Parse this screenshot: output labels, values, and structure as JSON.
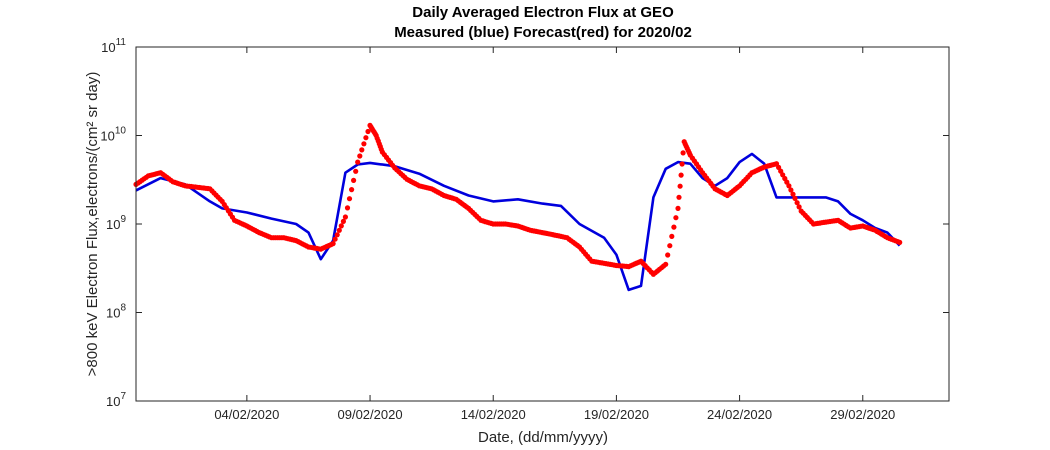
{
  "chart_data": {
    "type": "line",
    "title": "Daily Averaged Electron Flux at GEO",
    "subtitle": "Measured (blue) Forecast(red) for 2020/02",
    "xlabel": "Date, (dd/mm/yyyy)",
    "ylabel": ">800 keV Electron Flux,electrons/(cm² sr day)",
    "yscale": "log",
    "ylim": [
      10000000,
      100000000000
    ],
    "xlim": [
      "2020-01-30T12:00",
      "2020-03-03T12:00"
    ],
    "y_ticks": [
      {
        "value": 10000000,
        "base": "10",
        "exp": "7"
      },
      {
        "value": 100000000,
        "base": "10",
        "exp": "8"
      },
      {
        "value": 1000000000,
        "base": "10",
        "exp": "9"
      },
      {
        "value": 10000000000,
        "base": "10",
        "exp": "10"
      },
      {
        "value": 100000000000,
        "base": "10",
        "exp": "11"
      }
    ],
    "x_ticks": [
      {
        "date": "2020-02-04",
        "label": "04/02/2020"
      },
      {
        "date": "2020-02-09",
        "label": "09/02/2020"
      },
      {
        "date": "2020-02-14",
        "label": "14/02/2020"
      },
      {
        "date": "2020-02-19",
        "label": "19/02/2020"
      },
      {
        "date": "2020-02-24",
        "label": "24/02/2020"
      },
      {
        "date": "2020-02-29",
        "label": "29/02/2020"
      }
    ],
    "grid": false,
    "series": [
      {
        "color": "#0000dd",
        "style": "line",
        "x": [
          "2020-01-30T12:00",
          "2020-01-31T12:00",
          "2020-02-01T12:00",
          "2020-02-02T12:00",
          "2020-02-03T00:00",
          "2020-02-04T00:00",
          "2020-02-05T00:00",
          "2020-02-06T00:00",
          "2020-02-06T12:00",
          "2020-02-07T00:00",
          "2020-02-07T12:00",
          "2020-02-08T00:00",
          "2020-02-08T12:00",
          "2020-02-09T00:00",
          "2020-02-10T00:00",
          "2020-02-11T00:00",
          "2020-02-12T00:00",
          "2020-02-13T00:00",
          "2020-02-14T00:00",
          "2020-02-15T00:00",
          "2020-02-16T00:00",
          "2020-02-16T18:00",
          "2020-02-17T12:00",
          "2020-02-18T12:00",
          "2020-02-19T00:00",
          "2020-02-19T12:00",
          "2020-02-20T00:00",
          "2020-02-20T12:00",
          "2020-02-21T00:00",
          "2020-02-21T12:00",
          "2020-02-22T00:00",
          "2020-02-22T12:00",
          "2020-02-23T00:00",
          "2020-02-23T12:00",
          "2020-02-24T00:00",
          "2020-02-24T12:00",
          "2020-02-25T00:00",
          "2020-02-25T12:00",
          "2020-02-26T12:00",
          "2020-02-27T12:00",
          "2020-02-28T00:00",
          "2020-02-28T12:00",
          "2020-02-29T00:00",
          "2020-02-29T12:00",
          "2020-03-01T00:00",
          "2020-03-01T12:00"
        ],
        "values": [
          2400000000,
          3300000000,
          2800000000,
          1800000000,
          1500000000,
          1350000000,
          1150000000,
          1000000000,
          800000000,
          400000000,
          650000000,
          3800000000,
          4700000000,
          4900000000,
          4500000000,
          3700000000,
          2700000000,
          2100000000,
          1800000000,
          1900000000,
          1700000000,
          1600000000,
          1000000000,
          700000000,
          450000000,
          180000000,
          200000000,
          2000000000,
          4200000000,
          5000000000,
          4800000000,
          3300000000,
          2700000000,
          3300000000,
          5000000000,
          6200000000,
          4800000000,
          2000000000,
          2000000000,
          2000000000,
          1800000000,
          1300000000,
          1100000000,
          900000000,
          800000000,
          570000000
        ]
      },
      {
        "color": "#ff0000",
        "style": "dots",
        "x": [
          "2020-01-30T12:00",
          "2020-01-31T00:00",
          "2020-01-31T12:00",
          "2020-02-01T00:00",
          "2020-02-01T12:00",
          "2020-02-02T00:00",
          "2020-02-02T12:00",
          "2020-02-03T00:00",
          "2020-02-03T12:00",
          "2020-02-04T00:00",
          "2020-02-04T12:00",
          "2020-02-05T00:00",
          "2020-02-05T12:00",
          "2020-02-06T00:00",
          "2020-02-06T12:00",
          "2020-02-07T00:00",
          "2020-02-07T12:00",
          "2020-02-08T00:00",
          "2020-02-08T12:00",
          "2020-02-09T00:00",
          "2020-02-09T06:00",
          "2020-02-09T12:00",
          "2020-02-10T00:00",
          "2020-02-10T12:00",
          "2020-02-11T00:00",
          "2020-02-11T12:00",
          "2020-02-12T00:00",
          "2020-02-12T12:00",
          "2020-02-13T00:00",
          "2020-02-13T12:00",
          "2020-02-14T00:00",
          "2020-02-14T12:00",
          "2020-02-15T00:00",
          "2020-02-15T12:00",
          "2020-02-16T00:00",
          "2020-02-16T12:00",
          "2020-02-17T00:00",
          "2020-02-17T12:00",
          "2020-02-18T00:00",
          "2020-02-18T12:00",
          "2020-02-19T00:00",
          "2020-02-19T12:00",
          "2020-02-20T00:00",
          "2020-02-20T12:00",
          "2020-02-21T00:00",
          "2020-02-21T12:00",
          "2020-02-21T18:00",
          "2020-02-22T00:00",
          "2020-02-22T12:00",
          "2020-02-23T00:00",
          "2020-02-23T12:00",
          "2020-02-24T00:00",
          "2020-02-24T12:00",
          "2020-02-25T00:00",
          "2020-02-25T12:00",
          "2020-02-26T00:00",
          "2020-02-26T12:00",
          "2020-02-27T00:00",
          "2020-02-27T12:00",
          "2020-02-28T00:00",
          "2020-02-28T12:00",
          "2020-02-29T00:00",
          "2020-02-29T12:00",
          "2020-03-01T00:00",
          "2020-03-01T12:00"
        ],
        "values": [
          2800000000,
          3500000000,
          3800000000,
          3000000000,
          2700000000,
          2600000000,
          2500000000,
          1800000000,
          1100000000,
          950000000,
          800000000,
          700000000,
          700000000,
          650000000,
          550000000,
          520000000,
          600000000,
          1200000000,
          5000000000,
          13000000000,
          10000000000,
          6500000000,
          4300000000,
          3200000000,
          2700000000,
          2500000000,
          2100000000,
          1900000000,
          1500000000,
          1100000000,
          1000000000,
          1000000000,
          950000000,
          850000000,
          800000000,
          750000000,
          700000000,
          550000000,
          380000000,
          360000000,
          340000000,
          330000000,
          380000000,
          270000000,
          350000000,
          1500000000,
          8500000000,
          6000000000,
          3800000000,
          2500000000,
          2100000000,
          2700000000,
          3800000000,
          4400000000,
          4800000000,
          2700000000,
          1400000000,
          1000000000,
          1050000000,
          1100000000,
          900000000,
          950000000,
          850000000,
          700000000,
          620000000
        ]
      }
    ]
  }
}
